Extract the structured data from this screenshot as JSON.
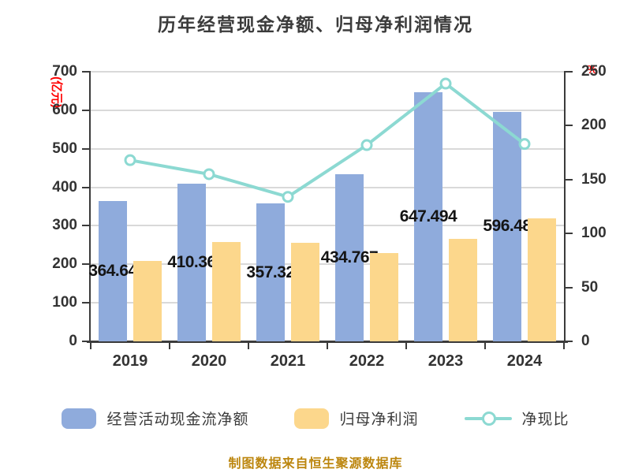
{
  "title": "历年经营现金净额、归母净利润情况",
  "footer": "制图数据来自恒生聚源数据库",
  "axes": {
    "left_unit": "(亿元)",
    "right_unit": "%",
    "left_ticks": [
      0,
      100,
      200,
      300,
      400,
      500,
      600,
      700
    ],
    "right_ticks": [
      0,
      50,
      100,
      150,
      200,
      250
    ]
  },
  "chart_data": {
    "type": "bar",
    "subtype": "grouped-bar-with-line-combo",
    "categories": [
      "2019",
      "2020",
      "2021",
      "2022",
      "2023",
      "2024"
    ],
    "series": [
      {
        "name": "经营活动现金流净额",
        "type": "bar",
        "axis": "left",
        "color": "#8fabdc",
        "values": [
          364.64,
          410.36,
          357.32,
          434.767,
          647.494,
          596.48
        ],
        "labels": [
          "364.64",
          "410.36",
          "357.32",
          "434.767",
          "647.494",
          "596.48"
        ]
      },
      {
        "name": "归母净利润",
        "type": "bar",
        "axis": "left",
        "color": "#fcd78c",
        "values": [
          208,
          257,
          256,
          230,
          266,
          319
        ]
      },
      {
        "name": "净现比",
        "type": "line",
        "axis": "right",
        "color": "#8cd9d2",
        "values": [
          168,
          155,
          134,
          182,
          239,
          183
        ]
      }
    ],
    "ylabel_left": "(亿元)",
    "ylabel_right": "%",
    "ylim_left": [
      0,
      700
    ],
    "ylim_right": [
      0,
      250
    ],
    "grid": true,
    "legend_position": "bottom"
  },
  "colors": {
    "bar_cash_flow": "#8fabdc",
    "bar_net_profit": "#fcd78c",
    "line_cash_ratio": "#8cd9d2",
    "axis_unit_red": "#ff0000",
    "title_text": "#3b3b3b",
    "footer_text": "#bc860e",
    "gridline": "#d9d9d9",
    "axis_line": "#3b3b3b"
  }
}
